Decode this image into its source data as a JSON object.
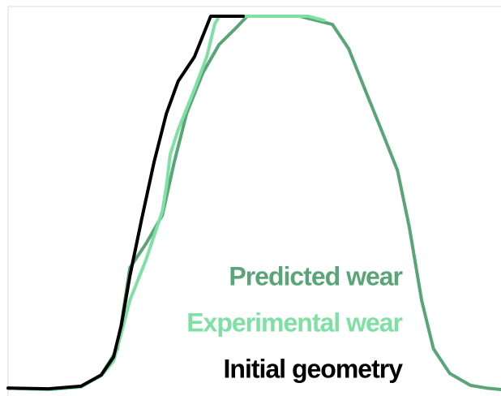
{
  "chart_data": {
    "type": "line",
    "xlim": [
      0,
      100
    ],
    "ylim": [
      0,
      100
    ],
    "series": [
      {
        "name": "Initial geometry",
        "color": "#000000",
        "x": [
          0,
          8.2,
          14.8,
          18.9,
          21.4,
          23.0,
          24.7,
          27.1,
          29.6,
          32.1,
          34.5,
          37.8,
          41.1,
          47.7
        ],
        "values": [
          0.4,
          0.2,
          0.9,
          3.9,
          8.7,
          17.4,
          30.4,
          45.7,
          60.9,
          73.9,
          82.6,
          89.1,
          100,
          100
        ]
      },
      {
        "name": "Experimental wear",
        "color": "#7fe0a4",
        "x": [
          0,
          8.2,
          14.8,
          18.9,
          21.4,
          23.0,
          24.7,
          28.0,
          31.3,
          32.1,
          32.9,
          34.5,
          37.8,
          40.3,
          41.9,
          42.8,
          60.9,
          64.1
        ],
        "values": [
          0.4,
          0,
          0.7,
          3.7,
          7.6,
          15.2,
          23.9,
          34.8,
          47.8,
          54.3,
          63.0,
          69.6,
          80.4,
          89.1,
          97.8,
          100,
          100,
          98.9
        ]
      },
      {
        "name": "Predicted wear",
        "color": "#5aa577",
        "x": [
          0,
          8.2,
          14.8,
          18.9,
          22.2,
          24.7,
          28.0,
          31.3,
          33.7,
          36.2,
          39.5,
          42.8,
          46.1,
          48.5,
          59.2,
          65.8,
          69.1,
          72.4,
          75.7,
          79.0,
          81.4,
          83.9,
          86.3,
          89.6,
          93.8,
          97.0,
          100
        ],
        "values": [
          0.4,
          0,
          0.7,
          3.9,
          10.9,
          32.6,
          39.1,
          46.7,
          60.9,
          73.9,
          84.8,
          92.4,
          96.7,
          100,
          100,
          97.8,
          91.3,
          80.4,
          69.6,
          58.7,
          43.5,
          23.9,
          10.9,
          4.3,
          1.1,
          0.4,
          0
        ]
      }
    ]
  }
}
